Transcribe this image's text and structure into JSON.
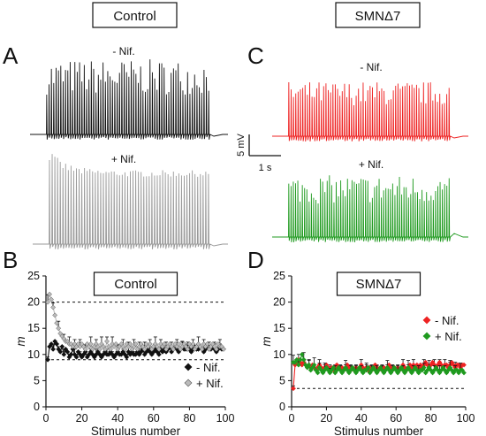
{
  "top_labels": {
    "control": "Control",
    "smn": "SMNΔ7"
  },
  "panels": {
    "A": "A",
    "B": "B",
    "C": "C",
    "D": "D"
  },
  "trace_labels": {
    "A_minus": "- Nif.",
    "A_plus": "+ Nif.",
    "C_minus": "- Nif.",
    "C_plus": "+ Nif."
  },
  "scalebar": {
    "v": "5 mV",
    "t": "1 s"
  },
  "colors": {
    "control_minus": "#111111",
    "control_plus": "#9a9a9a",
    "smn_minus": "#ee2222",
    "smn_plus": "#1f9a1f"
  },
  "chart_data": [
    {
      "type": "scatter",
      "title": "Control",
      "xlabel": "Stimulus number",
      "ylabel": "m",
      "xlim": [
        0,
        100
      ],
      "ylim": [
        0,
        25
      ],
      "xticks": [
        "0",
        "20",
        "40",
        "60",
        "80",
        "100"
      ],
      "yticks": [
        "0",
        "5",
        "10",
        "15",
        "20",
        "25"
      ],
      "reference_lines": [
        20,
        9
      ],
      "legend_position": "bottom-right",
      "series": [
        {
          "name": "- Nif.",
          "marker": "diamond",
          "color": "#111111",
          "values": [
            9.0,
            11.5,
            12.0,
            11.0,
            12.5,
            12.0,
            11.0,
            10.5,
            11.5,
            10.0,
            11.0,
            10.5,
            9.5,
            10.0,
            11.0,
            10.0,
            9.5,
            10.5,
            10.0,
            9.5,
            10.0,
            10.5,
            9.5,
            10.0,
            10.5,
            10.0,
            9.5,
            10.0,
            10.5,
            10.0,
            9.5,
            10.0,
            10.5,
            10.0,
            10.0,
            10.5,
            10.0,
            9.5,
            10.0,
            10.5,
            10.0,
            10.0,
            10.5,
            10.0,
            9.5,
            10.5,
            10.0,
            10.5,
            10.0,
            10.0,
            10.5,
            10.0,
            10.5,
            11.0,
            10.0,
            10.5,
            11.0,
            10.5,
            10.0,
            10.5,
            11.0,
            10.5,
            10.0,
            11.0,
            10.5,
            11.0,
            10.5,
            11.0,
            11.5,
            10.5,
            11.0,
            11.5,
            11.0,
            10.5,
            11.0,
            11.5,
            11.0,
            11.0,
            11.5,
            11.0,
            10.5,
            11.0,
            11.5,
            11.0,
            11.0,
            11.5,
            11.0,
            10.5,
            11.0,
            11.5,
            11.0,
            11.0,
            11.5,
            11.0,
            10.5,
            11.0,
            11.5,
            11.0,
            11.0
          ]
        },
        {
          "name": "+ Nif.",
          "marker": "diamond",
          "color": "#bbbbbb",
          "values": [
            20.0,
            21.5,
            20.5,
            19.0,
            17.5,
            16.0,
            15.0,
            14.0,
            13.5,
            13.0,
            12.5,
            12.5,
            12.0,
            12.0,
            11.5,
            12.0,
            11.5,
            12.0,
            11.5,
            12.0,
            11.5,
            11.0,
            12.0,
            11.5,
            12.0,
            11.0,
            11.5,
            12.0,
            11.5,
            11.0,
            12.0,
            11.5,
            11.0,
            12.5,
            11.5,
            11.0,
            12.0,
            11.5,
            12.0,
            11.0,
            11.5,
            12.0,
            11.5,
            11.0,
            12.0,
            11.5,
            12.0,
            11.0,
            11.5,
            12.0,
            11.0,
            11.5,
            12.0,
            11.5,
            11.0,
            12.0,
            11.5,
            12.0,
            11.0,
            11.5,
            12.0,
            11.5,
            11.0,
            12.0,
            11.5,
            12.0,
            11.0,
            11.5,
            12.0,
            11.5,
            11.0,
            12.0,
            11.5,
            12.0,
            11.0,
            11.5,
            12.0,
            11.5,
            11.0,
            12.0,
            11.5,
            12.0,
            11.0,
            11.5,
            12.0,
            11.5,
            11.0,
            12.0,
            11.5,
            12.0,
            11.0,
            11.5,
            12.0,
            11.5,
            11.0,
            12.0,
            11.5,
            11.5,
            11.0
          ]
        }
      ]
    },
    {
      "type": "scatter",
      "title": "SMNΔ7",
      "xlabel": "Stimulus number",
      "ylabel": "m",
      "xlim": [
        0,
        100
      ],
      "ylim": [
        0,
        25
      ],
      "xticks": [
        "0",
        "20",
        "40",
        "60",
        "80",
        "100"
      ],
      "yticks": [
        "0",
        "5",
        "10",
        "15",
        "20",
        "25"
      ],
      "reference_lines": [
        3.5
      ],
      "legend_position": "right",
      "series": [
        {
          "name": "- Nif.",
          "marker": "diamond",
          "color": "#ee2222",
          "values": [
            3.5,
            8.0,
            8.5,
            9.0,
            8.5,
            8.0,
            8.5,
            8.0,
            7.5,
            8.0,
            7.5,
            8.0,
            7.5,
            7.0,
            7.5,
            8.0,
            7.5,
            7.0,
            7.5,
            8.0,
            7.5,
            7.0,
            7.5,
            7.0,
            7.5,
            8.0,
            7.5,
            7.0,
            7.5,
            7.0,
            7.5,
            8.0,
            7.5,
            7.0,
            7.5,
            7.0,
            7.5,
            7.0,
            7.5,
            8.0,
            7.5,
            7.0,
            7.5,
            7.0,
            7.5,
            7.0,
            7.5,
            8.0,
            7.5,
            7.0,
            7.5,
            7.0,
            7.5,
            7.0,
            7.5,
            8.0,
            7.5,
            7.0,
            7.5,
            7.0,
            7.5,
            7.0,
            7.5,
            8.0,
            7.5,
            7.0,
            7.5,
            8.0,
            7.5,
            8.0,
            7.5,
            8.0,
            7.5,
            8.0,
            7.5,
            8.0,
            8.5,
            8.0,
            7.5,
            8.0,
            8.5,
            8.0,
            7.5,
            8.0,
            8.5,
            8.0,
            7.5,
            8.0,
            8.0,
            7.5,
            8.0,
            8.5,
            8.0,
            7.5,
            8.0,
            8.0,
            7.5,
            8.0,
            8.0
          ]
        },
        {
          "name": "+ Nif.",
          "marker": "diamond",
          "color": "#1f9a1f",
          "values": [
            8.5,
            8.5,
            9.0,
            8.0,
            9.0,
            10.0,
            9.0,
            8.0,
            7.5,
            8.0,
            7.0,
            7.5,
            8.0,
            7.0,
            6.5,
            7.5,
            7.0,
            6.5,
            7.0,
            7.5,
            7.0,
            6.5,
            7.0,
            7.5,
            6.5,
            7.0,
            7.5,
            7.0,
            6.5,
            7.0,
            7.5,
            7.0,
            6.5,
            7.0,
            7.5,
            7.0,
            6.5,
            7.0,
            7.5,
            7.0,
            6.5,
            7.0,
            7.0,
            7.5,
            6.5,
            7.0,
            7.5,
            7.0,
            6.5,
            7.0,
            7.5,
            7.0,
            6.5,
            7.0,
            7.5,
            7.0,
            6.5,
            7.0,
            7.5,
            7.0,
            6.5,
            7.0,
            7.5,
            7.0,
            6.5,
            7.0,
            7.5,
            7.0,
            6.5,
            7.0,
            7.5,
            7.0,
            6.5,
            7.0,
            7.0,
            7.5,
            6.5,
            7.0,
            7.5,
            7.0,
            6.5,
            7.0,
            7.5,
            7.0,
            6.5,
            7.0,
            7.5,
            7.0,
            6.5,
            7.0,
            7.5,
            7.0,
            6.5,
            7.0,
            7.0,
            6.5,
            7.0,
            7.0,
            6.5
          ]
        }
      ]
    }
  ]
}
